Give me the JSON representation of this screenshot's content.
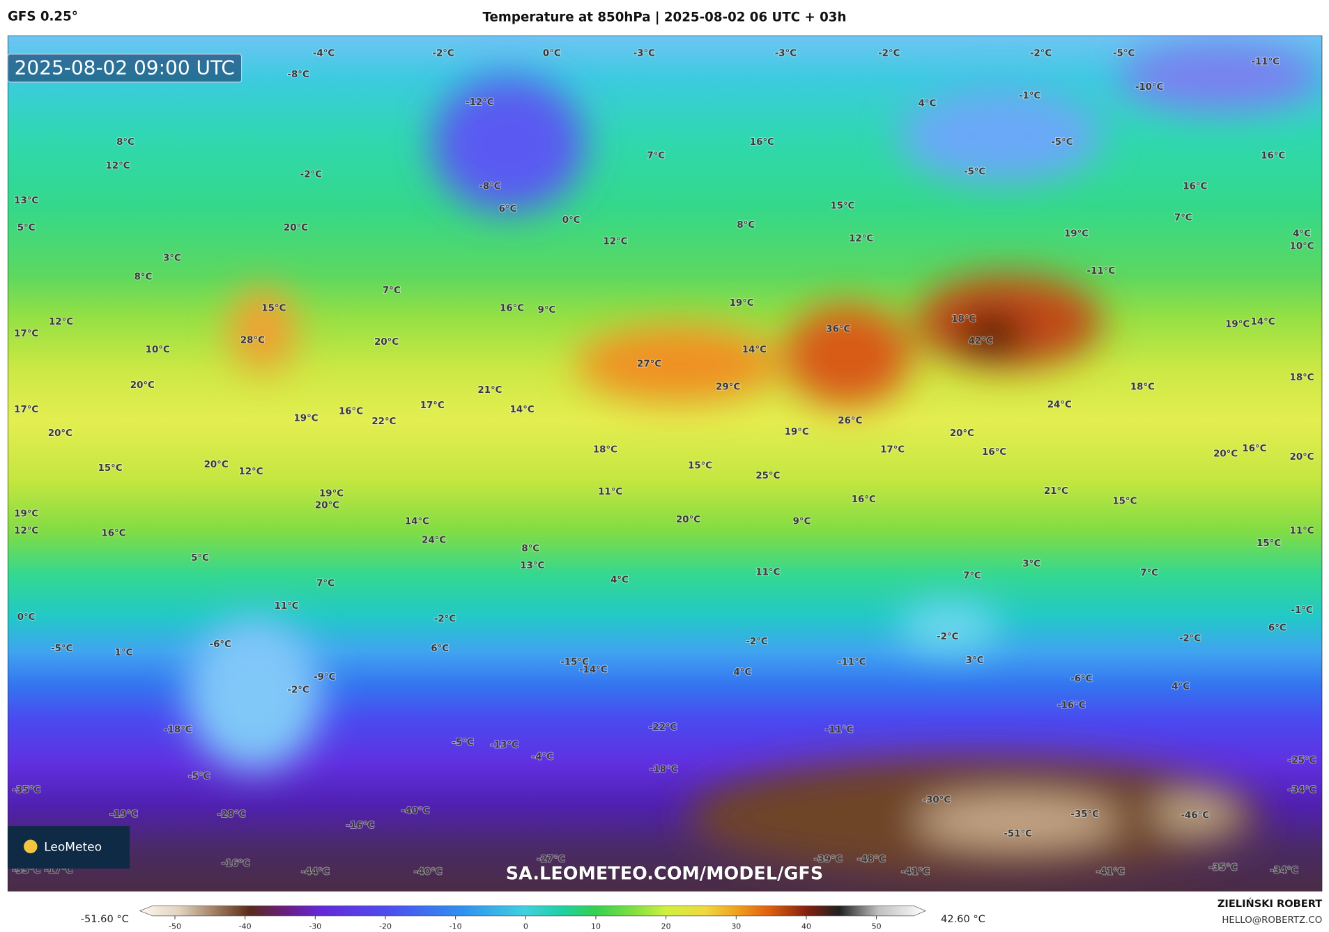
{
  "header": {
    "model": "GFS 0.25°",
    "title": "Temperature at 850hPa | 2025-08-02 06 UTC + 03h"
  },
  "timestamp": "2025-08-02 09:00 UTC",
  "logo": "LeoMeteo",
  "watermark": "SA.LEOMETEO.COM/MODEL/GFS",
  "author": {
    "name": "ZIELIŃSKI ROBERT",
    "email": "HELLO@ROBERTZ.CO"
  },
  "colorbar": {
    "min_label": "-51.60 °C",
    "max_label": "42.60 °C",
    "range": [
      -55,
      57
    ],
    "ticks": [
      -50,
      -40,
      -30,
      -20,
      -10,
      0,
      10,
      20,
      30,
      40,
      50
    ]
  },
  "map_labels": [
    "-4°C",
    "-2°C",
    "0°C",
    "-3°C",
    "-3°C",
    "-2°C",
    "-2°C",
    "-5°C",
    "-11°C",
    "-8°C",
    "-12°C",
    "-10°C",
    "4°C",
    "-1°C",
    "8°C",
    "7°C",
    "16°C",
    "-5°C",
    "16°C",
    "12°C",
    "-2°C",
    "-8°C",
    "6°C",
    "-5°C",
    "16°C",
    "13°C",
    "15°C",
    "0°C",
    "5°C",
    "20°C",
    "8°C",
    "7°C",
    "12°C",
    "12°C",
    "19°C",
    "4°C",
    "10°C",
    "3°C",
    "8°C",
    "-11°C",
    "7°C",
    "15°C",
    "16°C",
    "9°C",
    "19°C",
    "18°C",
    "36°C",
    "42°C",
    "19°C",
    "14°C",
    "17°C",
    "12°C",
    "28°C",
    "20°C",
    "10°C",
    "14°C",
    "27°C",
    "18°C",
    "20°C",
    "21°C",
    "29°C",
    "18°C",
    "17°C",
    "17°C",
    "14°C",
    "19°C",
    "16°C",
    "22°C",
    "26°C",
    "24°C",
    "20°C",
    "19°C",
    "20°C",
    "17°C",
    "16°C",
    "18°C",
    "16°C",
    "20°C",
    "20°C",
    "15°C",
    "20°C",
    "12°C",
    "15°C",
    "25°C",
    "19°C",
    "20°C",
    "11°C",
    "16°C",
    "21°C",
    "15°C",
    "19°C",
    "12°C",
    "16°C",
    "14°C",
    "20°C",
    "9°C",
    "11°C",
    "24°C",
    "8°C",
    "15°C",
    "5°C",
    "13°C",
    "3°C",
    "11°C",
    "7°C",
    "7°C",
    "7°C",
    "4°C",
    "11°C",
    "-1°C",
    "0°C",
    "-2°C",
    "6°C",
    "-2°C",
    "-2°C",
    "-6°C",
    "-2°C",
    "-5°C",
    "1°C",
    "6°C",
    "3°C",
    "-15°C",
    "-14°C",
    "-11°C",
    "4°C",
    "-9°C",
    "-6°C",
    "-2°C",
    "4°C",
    "-16°C",
    "-18°C",
    "-22°C",
    "-11°C",
    "-5°C",
    "-13°C",
    "-4°C",
    "-25°C",
    "-5°C",
    "-18°C",
    "-35°C",
    "-34°C",
    "-30°C",
    "-19°C",
    "-28°C",
    "-40°C",
    "-35°C",
    "-46°C",
    "-16°C",
    "-51°C",
    "-27°C",
    "-39°C",
    "-48°C",
    "-16°C",
    "-35°C",
    "-17°C",
    "-44°C",
    "-40°C",
    "-41°C",
    "-41°C",
    "-35°C",
    "-34°C"
  ]
}
